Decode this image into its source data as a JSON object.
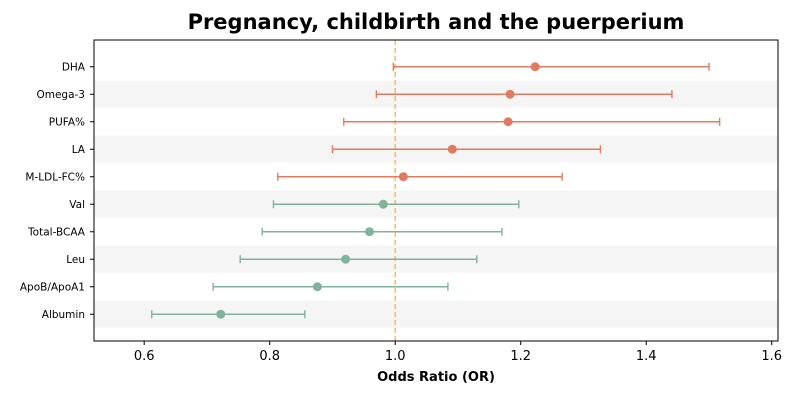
{
  "chart_data": {
    "type": "forest",
    "title": "Pregnancy, childbirth and the puerperium",
    "xlabel": "Odds Ratio (OR)",
    "ylabel": "",
    "xlim": [
      0.52,
      1.61
    ],
    "xticks": [
      0.6,
      0.8,
      1.0,
      1.2,
      1.4,
      1.6
    ],
    "xtick_labels": [
      "0.6",
      "0.8",
      "1.0",
      "1.2",
      "1.4",
      "1.6"
    ],
    "reference_line": 1.0,
    "grid": false,
    "alternating_row_shading": true,
    "colors": {
      "positive": "#e07b5f",
      "negative": "#7fb39b",
      "reference": "#f5c26b",
      "row_band": "#f5f5f5"
    },
    "rows": [
      {
        "label": "DHA",
        "or": 1.223,
        "lower": 0.997,
        "upper": 1.5,
        "direction": "positive"
      },
      {
        "label": "Omega-3",
        "or": 1.183,
        "lower": 0.97,
        "upper": 1.441,
        "direction": "positive"
      },
      {
        "label": "PUFA%",
        "or": 1.18,
        "lower": 0.918,
        "upper": 1.517,
        "direction": "positive"
      },
      {
        "label": "LA",
        "or": 1.091,
        "lower": 0.9,
        "upper": 1.327,
        "direction": "positive"
      },
      {
        "label": "M-LDL-FC%",
        "or": 1.013,
        "lower": 0.813,
        "upper": 1.266,
        "direction": "positive"
      },
      {
        "label": "Val",
        "or": 0.981,
        "lower": 0.806,
        "upper": 1.197,
        "direction": "negative"
      },
      {
        "label": "Total-BCAA",
        "or": 0.959,
        "lower": 0.788,
        "upper": 1.17,
        "direction": "negative"
      },
      {
        "label": "Leu",
        "or": 0.921,
        "lower": 0.753,
        "upper": 1.13,
        "direction": "negative"
      },
      {
        "label": "ApoB/ApoA1",
        "or": 0.876,
        "lower": 0.71,
        "upper": 1.084,
        "direction": "negative"
      },
      {
        "label": "Albumin",
        "or": 0.722,
        "lower": 0.612,
        "upper": 0.856,
        "direction": "negative"
      }
    ]
  }
}
